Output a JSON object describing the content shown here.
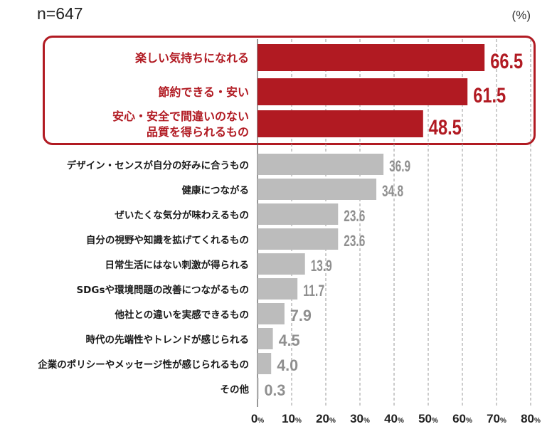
{
  "header": {
    "sample_size": "n=647",
    "unit": "(%)"
  },
  "colors": {
    "highlight": "#b11a22",
    "base": "#bcbcbc",
    "base_value_text": "#8f8f8f",
    "label_text": "#1a1a1a"
  },
  "chart_data": {
    "type": "bar",
    "orientation": "horizontal",
    "title": "",
    "xlabel": "",
    "ylabel": "",
    "xlim": [
      0,
      80
    ],
    "ticks": [
      0,
      10,
      20,
      30,
      40,
      50,
      60,
      70,
      80
    ],
    "tick_unit": "%",
    "grid": "dashed vertical",
    "items": [
      {
        "label": "楽しい気持ちになれる",
        "value": 66.5,
        "highlight": true
      },
      {
        "label": "節約できる・安い",
        "value": 61.5,
        "highlight": true
      },
      {
        "label": "安心・安全で間違いのない\n品質を得られるもの",
        "value": 48.5,
        "highlight": true
      },
      {
        "label": "デザイン・センスが自分の好みに合うもの",
        "value": 36.9,
        "highlight": false
      },
      {
        "label": "健康につながる",
        "value": 34.8,
        "highlight": false
      },
      {
        "label": "ぜいたくな気分が味わえるもの",
        "value": 23.6,
        "highlight": false
      },
      {
        "label": "自分の視野や知識を拡げてくれるもの",
        "value": 23.6,
        "highlight": false
      },
      {
        "label": "日常生活にはない刺激が得られる",
        "value": 13.9,
        "highlight": false
      },
      {
        "label": "SDGsや環境問題の改善につながるもの",
        "value": 11.7,
        "highlight": false
      },
      {
        "label": "他社との違いを実感できるもの",
        "value": 7.9,
        "highlight": false
      },
      {
        "label": "時代の先端性やトレンドが感じられる",
        "value": 4.5,
        "highlight": false
      },
      {
        "label": "企業のポリシーやメッセージ性が感じられるもの",
        "value": 4.0,
        "highlight": false
      },
      {
        "label": "その他",
        "value": 0.3,
        "highlight": false
      }
    ]
  }
}
